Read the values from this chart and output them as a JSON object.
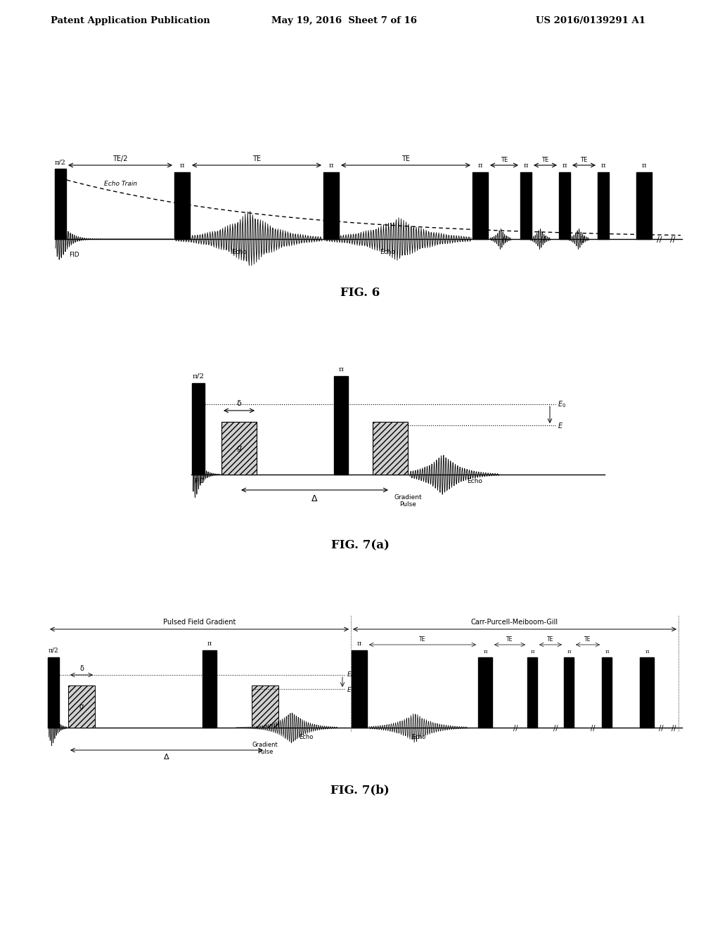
{
  "background_color": "#ffffff",
  "header_left": "Patent Application Publication",
  "header_center": "May 19, 2016  Sheet 7 of 16",
  "header_right": "US 2016/0139291 A1",
  "fig6_label": "FIG. 6",
  "fig7a_label": "FIG. 7(a)",
  "fig7b_label": "FIG. 7(b)"
}
